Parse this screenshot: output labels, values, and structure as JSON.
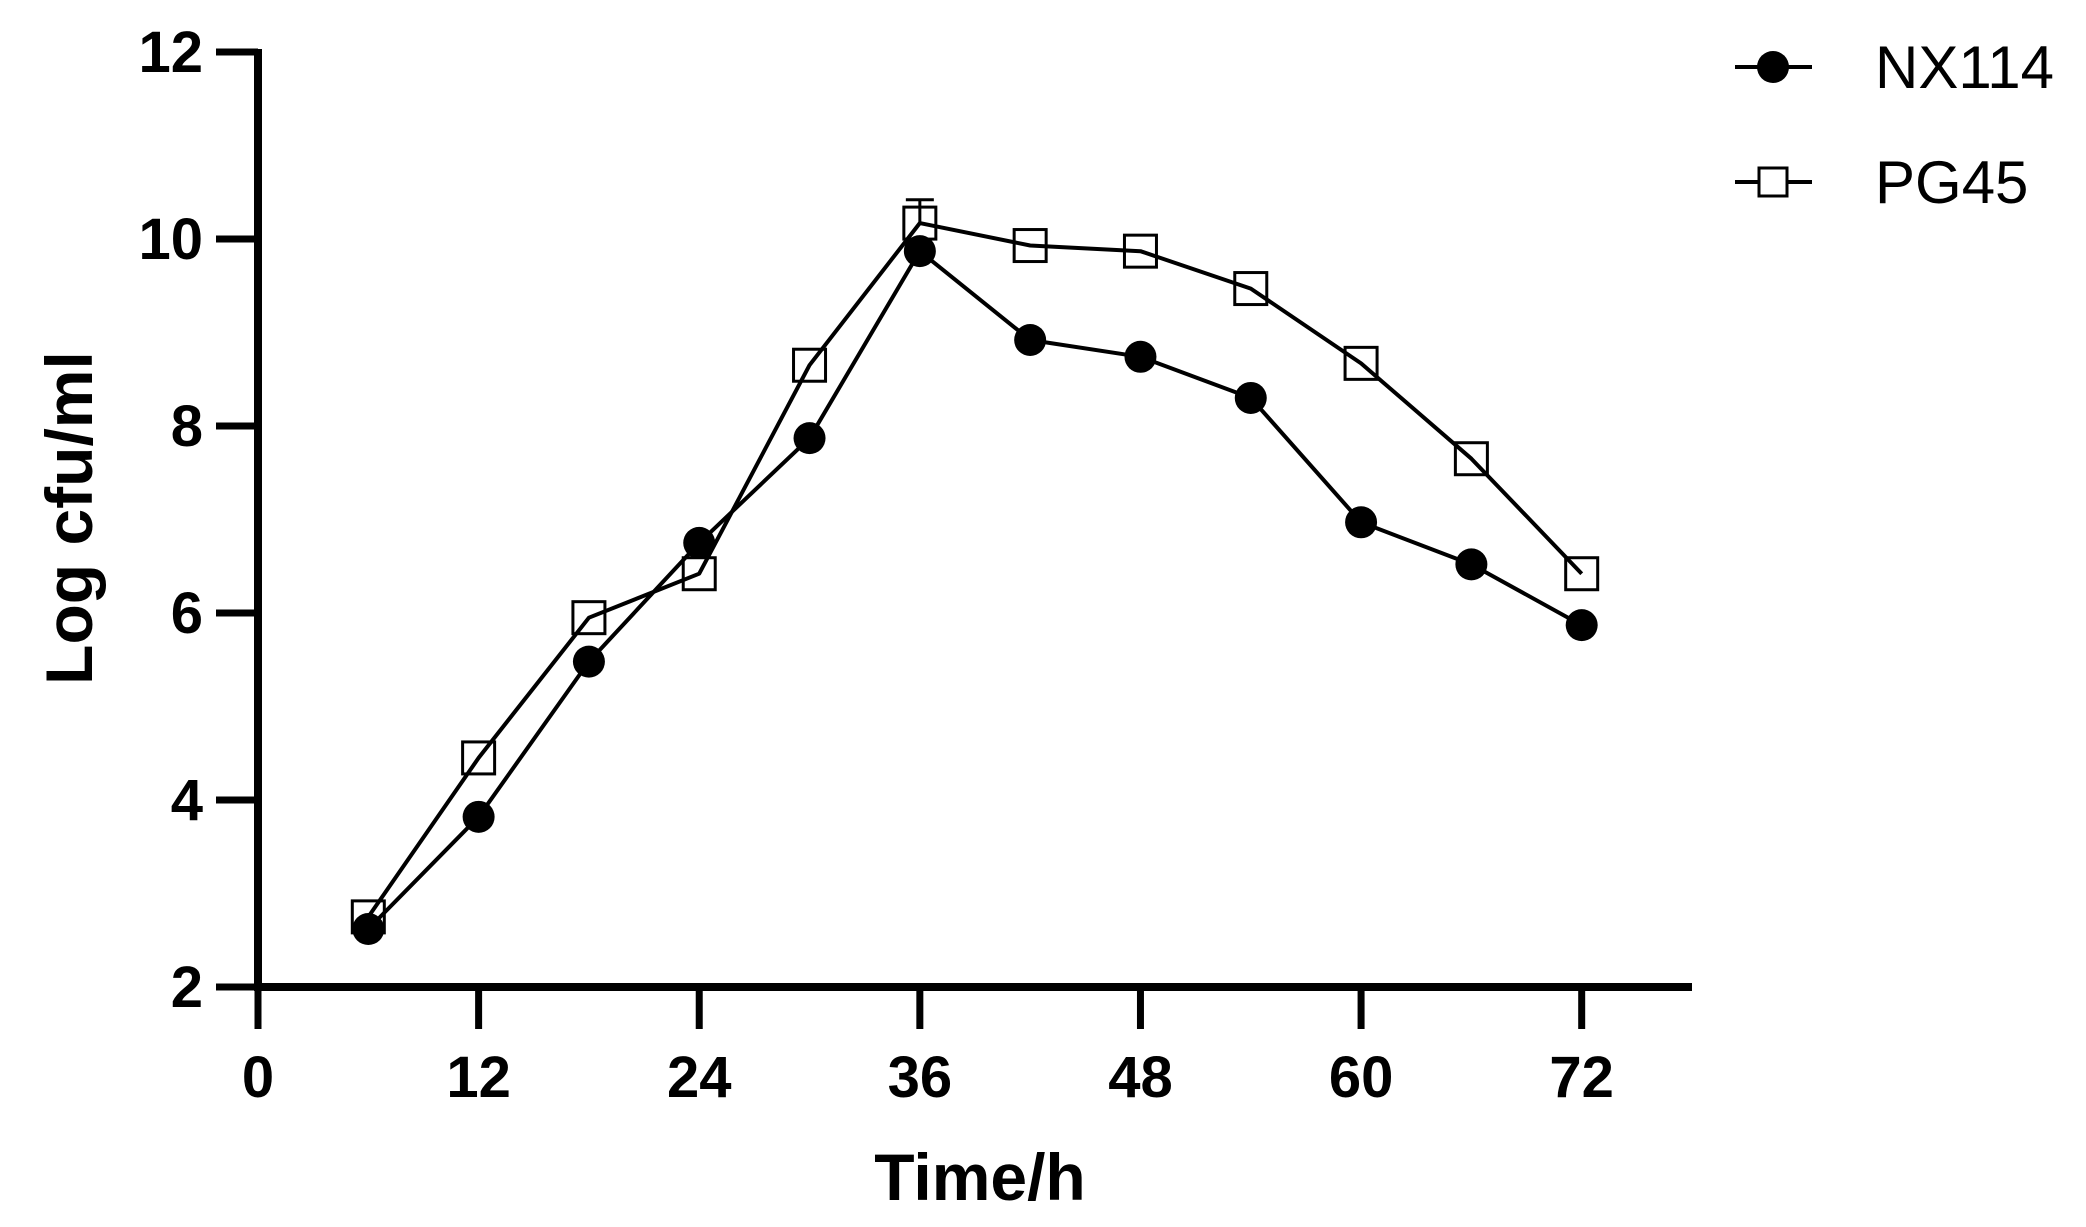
{
  "chart_data": {
    "type": "line",
    "title": "",
    "xlabel": "Time/h",
    "ylabel": "Log cfu/ml",
    "xlim": [
      0,
      78
    ],
    "ylim": [
      2,
      12
    ],
    "xticks": [
      0,
      12,
      24,
      36,
      48,
      60,
      72
    ],
    "xtick_labels": [
      "0",
      "12",
      "24",
      "36",
      "48",
      "60",
      "72"
    ],
    "yticks": [
      2,
      4,
      6,
      8,
      10,
      12
    ],
    "ytick_labels": [
      "2",
      "4",
      "6",
      "8",
      "10",
      "12"
    ],
    "grid": false,
    "legend_position": "top-right",
    "x": [
      6,
      12,
      18,
      24,
      30,
      36,
      42,
      48,
      54,
      60,
      66,
      72
    ],
    "series": [
      {
        "name": "NX114",
        "marker": "filled-circle",
        "color": "#000000",
        "values": [
          2.62,
          3.82,
          5.48,
          6.75,
          7.87,
          9.87,
          8.92,
          8.74,
          8.3,
          6.97,
          6.52,
          5.87
        ]
      },
      {
        "name": "PG45",
        "marker": "open-square",
        "color": "#000000",
        "values": [
          2.75,
          4.45,
          5.95,
          6.42,
          8.65,
          10.17,
          9.93,
          9.87,
          9.47,
          8.67,
          7.65,
          6.42
        ],
        "error_upper": [
          0,
          0,
          0,
          0,
          0,
          0.25,
          0,
          0,
          0,
          0,
          0,
          0
        ]
      }
    ]
  }
}
